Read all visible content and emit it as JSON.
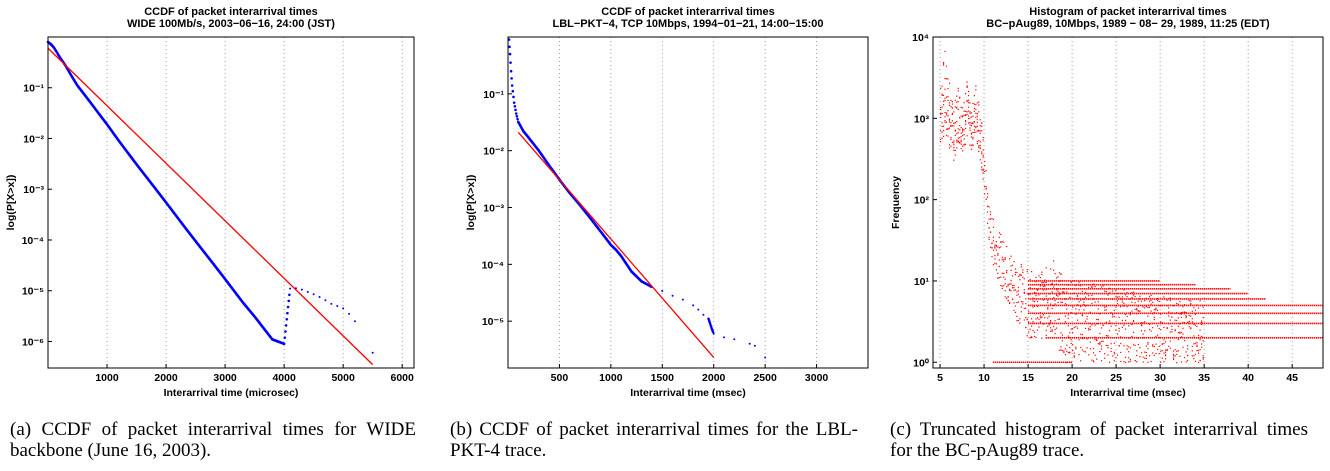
{
  "chart_data": [
    {
      "type": "scatter",
      "title": "CCDF of packet interarrival times",
      "subtitle": "WIDE 100Mb/s, 2003−06−16, 24:00 (JST)",
      "xlabel": "Interarrival time (microsec)",
      "ylabel": "log(P[X>x])",
      "ylog": true,
      "xlim": [
        0,
        6200
      ],
      "ylim": [
        3e-07,
        1
      ],
      "xticks": [
        1000,
        2000,
        3000,
        4000,
        5000,
        6000
      ],
      "xtick_labels": [
        "1000",
        "2000",
        "3000",
        "4000",
        "5000",
        "6000"
      ],
      "yticks": [
        1e-06,
        1e-05,
        0.0001,
        0.001,
        0.01,
        0.1
      ],
      "ytick_labels": [
        "10⁻⁶",
        "10⁻⁵",
        "10⁻⁴",
        "10⁻³",
        "10⁻²",
        "10⁻¹"
      ],
      "grid": "vertical dotted",
      "colors": {
        "data": "#0000ff",
        "fit": "#ff0000"
      },
      "series": [
        {
          "kind": "points",
          "x": [
            0,
            30,
            60,
            100,
            150,
            200,
            300,
            400,
            500,
            700,
            900,
            1000,
            1200,
            1500,
            1800,
            2000,
            2300,
            2500,
            2800,
            3000,
            3300,
            3500,
            3800,
            4000,
            4100,
            4200,
            4300,
            4400,
            4500,
            4600,
            4700,
            4800,
            4900,
            5000,
            5100,
            5200,
            5500
          ],
          "y": [
            0.8,
            0.75,
            0.7,
            0.62,
            0.5,
            0.4,
            0.27,
            0.17,
            0.11,
            0.055,
            0.027,
            0.019,
            0.009,
            0.0031,
            0.0011,
            0.00055,
            0.00019,
            9.5e-05,
            3.4e-05,
            1.7e-05,
            5.9e-06,
            3.1e-06,
            1.1e-06,
            9e-07,
            1.1e-05,
            1.12e-05,
            1.05e-05,
            9.5e-06,
            8.5e-06,
            7.5e-06,
            6.5e-06,
            5.5e-06,
            5e-06,
            4.5e-06,
            3.5e-06,
            2.5e-06,
            6e-07
          ]
        },
        {
          "kind": "line",
          "x": [
            0,
            5500
          ],
          "y": [
            0.6,
            3.5e-07
          ]
        }
      ]
    },
    {
      "type": "scatter",
      "title": "CCDF of packet interarrival times",
      "subtitle": "LBL−PKT−4, TCP 10Mbps, 1994−01−21, 14:00−15:00",
      "xlabel": "Interarrival time (msec)",
      "ylabel": "log(P[X>x])",
      "ylog": true,
      "xlim": [
        0,
        3500
      ],
      "ylim": [
        1.5e-06,
        1
      ],
      "xticks": [
        500,
        1000,
        1500,
        2000,
        2500,
        3000
      ],
      "xtick_labels": [
        "500",
        "1000",
        "1500",
        "2000",
        "2500",
        "3000"
      ],
      "yticks": [
        1e-05,
        0.0001,
        0.001,
        0.01,
        0.1
      ],
      "ytick_labels": [
        "10⁻⁵",
        "10⁻⁴",
        "10⁻³",
        "10⁻²",
        "10⁻¹"
      ],
      "grid": "vertical dotted",
      "colors": {
        "data": "#0000ff",
        "fit": "#ff0000"
      },
      "series": [
        {
          "kind": "points",
          "x": [
            10,
            20,
            30,
            40,
            60,
            80,
            100,
            150,
            200,
            300,
            400,
            500,
            600,
            700,
            800,
            900,
            1000,
            1050,
            1100,
            1200,
            1300,
            1400,
            1500,
            1600,
            1700,
            1800,
            1850,
            1900,
            1950,
            1980,
            2000,
            2100,
            2200,
            2350,
            2400,
            2500
          ],
          "y": [
            0.9,
            0.5,
            0.25,
            0.14,
            0.07,
            0.045,
            0.032,
            0.022,
            0.017,
            0.01,
            0.0055,
            0.0031,
            0.0018,
            0.0011,
            0.00065,
            0.00038,
            0.00022,
            0.00018,
            0.00014,
            7.5e-05,
            5e-05,
            4e-05,
            3.4e-05,
            2.8e-05,
            2.4e-05,
            1.9e-05,
            1.6e-05,
            1.3e-05,
            1.1e-05,
            7.5e-06,
            6e-06,
            5.2e-06,
            4.8e-06,
            4e-06,
            3.7e-06,
            2.3e-06
          ]
        },
        {
          "kind": "line",
          "x": [
            100,
            2000
          ],
          "y": [
            0.021,
            2.3e-06
          ]
        }
      ]
    },
    {
      "type": "scatter",
      "title": "Histogram of packet interarrival times",
      "subtitle": "BC−pAug89, 10Mbps, 1989 − 08− 29, 1989, 11:25 (EDT)",
      "xlabel": "Interarrival time (msec)",
      "ylabel": "Frequency",
      "ylog": true,
      "xlim": [
        4.2,
        48.5
      ],
      "ylim": [
        0.85,
        10000
      ],
      "xticks": [
        5,
        10,
        15,
        20,
        25,
        30,
        35,
        40,
        45
      ],
      "xtick_labels": [
        "5",
        "10",
        "15",
        "20",
        "25",
        "30",
        "35",
        "40",
        "45"
      ],
      "yticks": [
        1,
        10,
        100,
        1000,
        10000
      ],
      "ytick_labels": [
        "10⁰",
        "10¹",
        "10²",
        "10³",
        "10⁴"
      ],
      "grid": "vertical dotted",
      "colors": {
        "data": "#ff0000"
      },
      "envelope": {
        "x": [
          5,
          5.5,
          6,
          6.5,
          7,
          7.5,
          8,
          8.5,
          9,
          9.5,
          10,
          10.5,
          11,
          12,
          13,
          14,
          15,
          16,
          17,
          17.5,
          18,
          19,
          20,
          22,
          24,
          26,
          28,
          30,
          32,
          35
        ],
        "upper": [
          3000,
          7000,
          3000,
          1300,
          3000,
          1500,
          3000,
          1200,
          3000,
          1500,
          400,
          90,
          60,
          35,
          25,
          18,
          14,
          12,
          15,
          35,
          15,
          12,
          11,
          10,
          9,
          8,
          7,
          7,
          6,
          6
        ],
        "lower": [
          450,
          600,
          400,
          300,
          500,
          400,
          500,
          400,
          600,
          300,
          100,
          30,
          15,
          8,
          4,
          3,
          2,
          2,
          2,
          2,
          2,
          1,
          1,
          1,
          1,
          1,
          1,
          1,
          1,
          1
        ]
      },
      "levels": [
        {
          "y": 1,
          "x_end": 20
        },
        {
          "y": 2,
          "x_end": 48.5
        },
        {
          "y": 3,
          "x_end": 48.5
        },
        {
          "y": 4,
          "x_end": 48.5
        },
        {
          "y": 5,
          "x_end": 48.5
        },
        {
          "y": 6,
          "x_end": 42
        },
        {
          "y": 7,
          "x_end": 40
        },
        {
          "y": 8,
          "x_end": 38
        },
        {
          "y": 9,
          "x_end": 34
        },
        {
          "y": 10,
          "x_end": 30
        }
      ]
    }
  ],
  "captions": [
    {
      "label": "(a)",
      "text": "CCDF of packet interarrival times for WIDE backbone (June 16, 2003)."
    },
    {
      "label": "(b)",
      "text": "CCDF of packet interarrival times for the LBL-PKT-4 trace."
    },
    {
      "label": "(c)",
      "text": "Truncated histogram of packet interarrival times for the BC-pAug89 trace."
    }
  ]
}
